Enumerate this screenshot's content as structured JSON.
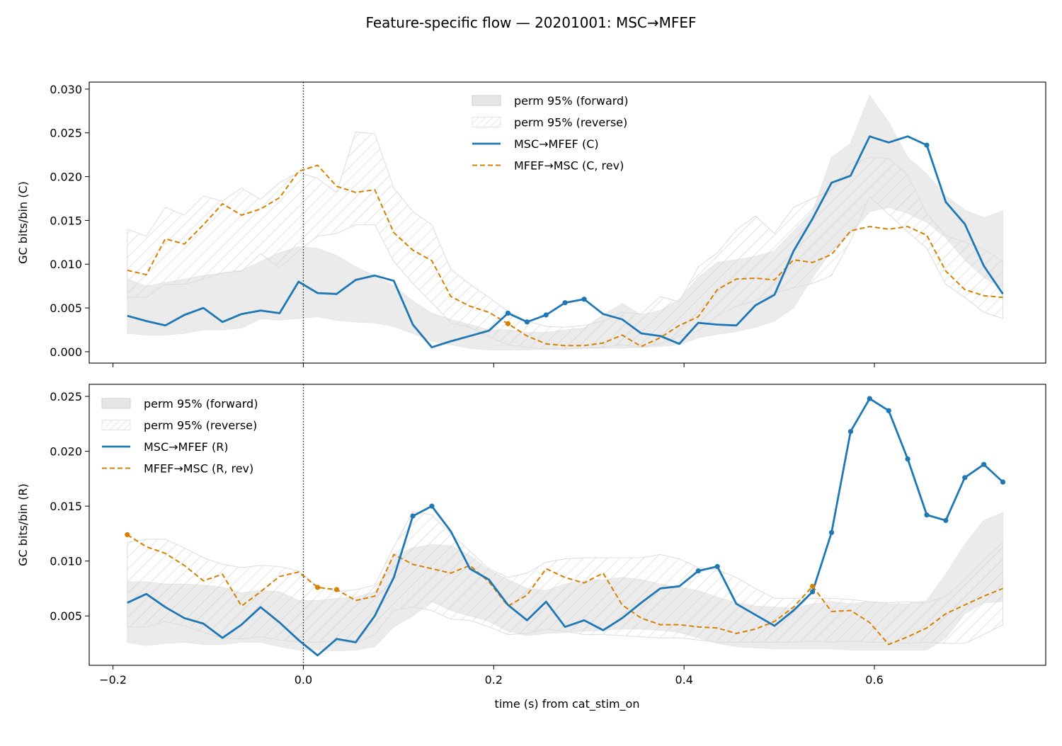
{
  "figure": {
    "suptitle": "Feature-specific flow — 20201001: MSC→MFEF",
    "xlabel": "time (s) from cat_stim_on"
  },
  "colors": {
    "forward_line": "#1f77b4",
    "reverse_line": "#d68100",
    "band_fill": "#e6e6e6",
    "band_edge": "#c8c8c8",
    "hatch": "#cfcfcf"
  },
  "chart_data": [
    {
      "type": "line",
      "ylabel": "GC bits/bin (C)",
      "xlim": [
        -0.225,
        0.78
      ],
      "ylim": [
        -0.0013,
        0.0308
      ],
      "xticks": [
        -0.2,
        0.0,
        0.2,
        0.4,
        0.6
      ],
      "xtick_labels": [
        "",
        "",
        "",
        "",
        ""
      ],
      "yticks": [
        0.0,
        0.005,
        0.01,
        0.015,
        0.02,
        0.025,
        0.03
      ],
      "ytick_labels": [
        "0.000",
        "0.005",
        "0.010",
        "0.015",
        "0.020",
        "0.025",
        "0.030"
      ],
      "vline_x": 0.0,
      "legend_position": "upper-center",
      "legend": [
        "perm 95% (forward)",
        "perm 95% (reverse)",
        "MSC→MFEF (C)",
        "MFEF→MSC (C, rev)"
      ],
      "x": [
        -0.185,
        -0.165,
        -0.145,
        -0.125,
        -0.105,
        -0.085,
        -0.065,
        -0.045,
        -0.025,
        -0.005,
        0.015,
        0.035,
        0.055,
        0.075,
        0.095,
        0.115,
        0.135,
        0.155,
        0.175,
        0.195,
        0.215,
        0.235,
        0.255,
        0.275,
        0.295,
        0.315,
        0.335,
        0.355,
        0.375,
        0.395,
        0.415,
        0.435,
        0.455,
        0.475,
        0.495,
        0.515,
        0.535,
        0.555,
        0.575,
        0.595,
        0.615,
        0.635,
        0.655,
        0.675,
        0.695,
        0.715,
        0.735
      ],
      "series": [
        {
          "name": "MSC→MFEF (C)",
          "role": "forward",
          "values": [
            0.0041,
            0.0035,
            0.003,
            0.0042,
            0.005,
            0.0034,
            0.0043,
            0.0047,
            0.0044,
            0.008,
            0.0067,
            0.0066,
            0.0082,
            0.0087,
            0.0081,
            0.0031,
            0.0005,
            0.0012,
            0.0018,
            0.0024,
            0.0044,
            0.0034,
            0.0042,
            0.0056,
            0.006,
            0.0043,
            0.0037,
            0.0021,
            0.0018,
            0.0009,
            0.0033,
            0.0031,
            0.003,
            0.0053,
            0.0065,
            0.0115,
            0.0152,
            0.0193,
            0.0201,
            0.0246,
            0.0239,
            0.0246,
            0.0236,
            0.0171,
            0.0146,
            0.0098,
            0.0066
          ]
        },
        {
          "name": "MFEF→MSC (C, rev)",
          "role": "reverse",
          "values": [
            0.0093,
            0.0088,
            0.0129,
            0.0123,
            0.0145,
            0.0169,
            0.0156,
            0.0163,
            0.0176,
            0.0206,
            0.0213,
            0.0189,
            0.0182,
            0.0185,
            0.0136,
            0.0116,
            0.0104,
            0.0063,
            0.0052,
            0.0045,
            0.0032,
            0.0018,
            0.0009,
            0.0007,
            0.0007,
            0.001,
            0.0019,
            0.0006,
            0.0016,
            0.003,
            0.004,
            0.0071,
            0.0083,
            0.0084,
            0.0082,
            0.0105,
            0.0102,
            0.0111,
            0.0138,
            0.0143,
            0.014,
            0.0143,
            0.0133,
            0.0092,
            0.0071,
            0.0064,
            0.0062
          ]
        }
      ],
      "marked_forward_x": [
        0.215,
        0.235,
        0.255,
        0.275,
        0.295,
        0.655
      ],
      "marked_reverse_x": [
        0.215
      ],
      "band_forward": {
        "lower": [
          0.0021,
          0.0019,
          0.0019,
          0.0021,
          0.0025,
          0.0025,
          0.0027,
          0.0038,
          0.0036,
          0.0038,
          0.004,
          0.0036,
          0.0034,
          0.0033,
          0.0029,
          0.0021,
          0.0012,
          0.0008,
          0.0004,
          0.0002,
          0.0002,
          0.0002,
          0.0003,
          0.0004,
          0.0004,
          0.0004,
          0.0004,
          0.0005,
          0.0006,
          0.0008,
          0.0016,
          0.002,
          0.0023,
          0.0028,
          0.0035,
          0.005,
          0.0085,
          0.0115,
          0.0135,
          0.016,
          0.0165,
          0.0158,
          0.0148,
          0.013,
          0.0105,
          0.0085,
          0.0072
        ],
        "upper": [
          0.0083,
          0.0075,
          0.0079,
          0.0083,
          0.0087,
          0.009,
          0.0093,
          0.0103,
          0.0113,
          0.012,
          0.0118,
          0.011,
          0.0097,
          0.0087,
          0.0075,
          0.0058,
          0.0044,
          0.0037,
          0.0031,
          0.0025,
          0.0025,
          0.0022,
          0.0022,
          0.0025,
          0.0027,
          0.0042,
          0.0055,
          0.0042,
          0.0047,
          0.006,
          0.0085,
          0.0102,
          0.0105,
          0.0109,
          0.0115,
          0.0138,
          0.016,
          0.0222,
          0.0238,
          0.0293,
          0.0262,
          0.0222,
          0.0203,
          0.0178,
          0.0162,
          0.0153,
          0.0161
        ]
      },
      "band_reverse": {
        "lower": [
          0.0062,
          0.0062,
          0.0077,
          0.0077,
          0.0083,
          0.009,
          0.0092,
          0.0112,
          0.0096,
          0.0115,
          0.0132,
          0.0135,
          0.0145,
          0.0145,
          0.0103,
          0.0078,
          0.0056,
          0.0033,
          0.0028,
          0.0017,
          0.0008,
          0.0005,
          0.0003,
          0.0003,
          0.0004,
          0.0005,
          0.0008,
          0.0005,
          0.0009,
          0.0018,
          0.0024,
          0.0041,
          0.0052,
          0.0058,
          0.0067,
          0.0073,
          0.0078,
          0.0087,
          0.0127,
          0.0177,
          0.0157,
          0.0137,
          0.0118,
          0.0077,
          0.0062,
          0.0045,
          0.0038
        ],
        "upper": [
          0.014,
          0.0132,
          0.0165,
          0.0156,
          0.0178,
          0.0172,
          0.0187,
          0.0174,
          0.0193,
          0.0205,
          0.0198,
          0.0182,
          0.0251,
          0.0249,
          0.0187,
          0.016,
          0.0145,
          0.0094,
          0.0077,
          0.0062,
          0.0046,
          0.0035,
          0.0029,
          0.0028,
          0.003,
          0.0035,
          0.0045,
          0.0043,
          0.0063,
          0.0057,
          0.0097,
          0.0113,
          0.0139,
          0.0155,
          0.0135,
          0.0165,
          0.0175,
          0.0185,
          0.0215,
          0.0222,
          0.0221,
          0.0202,
          0.0158,
          0.0133,
          0.0125,
          0.0117,
          0.0103
        ]
      }
    },
    {
      "type": "line",
      "ylabel": "GC bits/bin (R)",
      "xlim": [
        -0.225,
        0.78
      ],
      "ylim": [
        0.0005,
        0.0261
      ],
      "xticks": [
        -0.2,
        0.0,
        0.2,
        0.4,
        0.6
      ],
      "xtick_labels": [
        "−0.2",
        "0.0",
        "0.2",
        "0.4",
        "0.6"
      ],
      "yticks": [
        0.005,
        0.01,
        0.015,
        0.02,
        0.025
      ],
      "ytick_labels": [
        "0.005",
        "0.010",
        "0.015",
        "0.020",
        "0.025"
      ],
      "vline_x": 0.0,
      "legend_position": "upper-left",
      "legend": [
        "perm 95% (forward)",
        "perm 95% (reverse)",
        "MSC→MFEF (R)",
        "MFEF→MSC (R, rev)"
      ],
      "x": [
        -0.185,
        -0.165,
        -0.145,
        -0.125,
        -0.105,
        -0.085,
        -0.065,
        -0.045,
        -0.025,
        -0.005,
        0.015,
        0.035,
        0.055,
        0.075,
        0.095,
        0.115,
        0.135,
        0.155,
        0.175,
        0.195,
        0.215,
        0.235,
        0.255,
        0.275,
        0.295,
        0.315,
        0.335,
        0.355,
        0.375,
        0.395,
        0.415,
        0.435,
        0.455,
        0.475,
        0.495,
        0.515,
        0.535,
        0.555,
        0.575,
        0.595,
        0.615,
        0.635,
        0.655,
        0.675,
        0.695,
        0.715,
        0.735
      ],
      "series": [
        {
          "name": "MSC→MFEF (R)",
          "role": "forward",
          "values": [
            0.0062,
            0.007,
            0.0058,
            0.0048,
            0.0043,
            0.003,
            0.0042,
            0.0058,
            0.0044,
            0.0028,
            0.0014,
            0.0029,
            0.0026,
            0.005,
            0.0085,
            0.0141,
            0.015,
            0.0127,
            0.0093,
            0.0083,
            0.006,
            0.0046,
            0.0063,
            0.004,
            0.0046,
            0.0037,
            0.0048,
            0.0062,
            0.0075,
            0.0077,
            0.0091,
            0.0095,
            0.0061,
            0.0051,
            0.0041,
            0.0055,
            0.0072,
            0.0126,
            0.0218,
            0.0248,
            0.0237,
            0.0193,
            0.0142,
            0.0137,
            0.0176,
            0.0188,
            0.0172
          ]
        },
        {
          "name": "MFEF→MSC (R, rev)",
          "role": "reverse",
          "values": [
            0.0124,
            0.0113,
            0.0107,
            0.0096,
            0.0082,
            0.0088,
            0.0059,
            0.0072,
            0.0086,
            0.009,
            0.0076,
            0.0074,
            0.0064,
            0.0068,
            0.0106,
            0.0097,
            0.0093,
            0.0089,
            0.0096,
            0.0081,
            0.0059,
            0.0069,
            0.0093,
            0.0085,
            0.008,
            0.0089,
            0.006,
            0.0048,
            0.0042,
            0.0042,
            0.004,
            0.0039,
            0.0034,
            0.0038,
            0.0045,
            0.0058,
            0.0077,
            0.0054,
            0.0055,
            0.0044,
            0.0024,
            0.0031,
            0.0039,
            0.0052,
            0.006,
            0.0068,
            0.0075
          ]
        }
      ],
      "marked_forward_x": [
        0.115,
        0.135,
        0.415,
        0.435,
        0.535,
        0.555,
        0.575,
        0.595,
        0.615,
        0.635,
        0.655,
        0.675,
        0.695,
        0.715,
        0.735
      ],
      "marked_reverse_x": [
        -0.185,
        0.015,
        0.035,
        0.535
      ],
      "band_forward": {
        "lower": [
          0.0026,
          0.0023,
          0.0025,
          0.0026,
          0.0024,
          0.0024,
          0.0026,
          0.0026,
          0.0022,
          0.0019,
          0.0019,
          0.0018,
          0.0019,
          0.0022,
          0.004,
          0.005,
          0.0063,
          0.0055,
          0.005,
          0.0045,
          0.0036,
          0.0032,
          0.0034,
          0.0035,
          0.0036,
          0.0037,
          0.0038,
          0.0038,
          0.0037,
          0.0035,
          0.003,
          0.0025,
          0.0022,
          0.0021,
          0.002,
          0.002,
          0.002,
          0.002,
          0.0019,
          0.0019,
          0.0019,
          0.0019,
          0.0019,
          0.003,
          0.0052,
          0.0062,
          0.0063
        ],
        "upper": [
          0.0081,
          0.0081,
          0.0079,
          0.0079,
          0.0078,
          0.0076,
          0.0071,
          0.0073,
          0.0072,
          0.0064,
          0.0064,
          0.0066,
          0.0067,
          0.0072,
          0.0105,
          0.0112,
          0.0115,
          0.0114,
          0.0105,
          0.0092,
          0.0083,
          0.0075,
          0.0073,
          0.0079,
          0.0082,
          0.0083,
          0.0085,
          0.0083,
          0.0079,
          0.0076,
          0.0073,
          0.0067,
          0.0062,
          0.0059,
          0.0058,
          0.0057,
          0.0061,
          0.0063,
          0.0061,
          0.0063,
          0.0061,
          0.0061,
          0.0064,
          0.0088,
          0.0115,
          0.0137,
          0.0144
        ]
      },
      "band_reverse": {
        "lower": [
          0.004,
          0.004,
          0.0045,
          0.0041,
          0.0035,
          0.003,
          0.0029,
          0.0031,
          0.0028,
          0.0026,
          0.0026,
          0.0027,
          0.0025,
          0.0033,
          0.0055,
          0.0058,
          0.0055,
          0.0047,
          0.0046,
          0.004,
          0.0033,
          0.0034,
          0.0038,
          0.0036,
          0.0033,
          0.0033,
          0.0032,
          0.0031,
          0.003,
          0.003,
          0.0028,
          0.0026,
          0.0026,
          0.0026,
          0.0026,
          0.0026,
          0.0027,
          0.0026,
          0.0027,
          0.0026,
          0.0026,
          0.0025,
          0.0026,
          0.0025,
          0.0025,
          0.0033,
          0.0042
        ],
        "upper": [
          0.0117,
          0.012,
          0.012,
          0.0112,
          0.0103,
          0.0097,
          0.0094,
          0.0096,
          0.0095,
          0.0091,
          0.0077,
          0.0072,
          0.0074,
          0.0078,
          0.0113,
          0.0145,
          0.0142,
          0.0125,
          0.0109,
          0.0093,
          0.0085,
          0.0089,
          0.0099,
          0.0102,
          0.0103,
          0.0103,
          0.0103,
          0.0103,
          0.0106,
          0.0102,
          0.0094,
          0.0092,
          0.0085,
          0.0075,
          0.0066,
          0.0066,
          0.0066,
          0.0066,
          0.0065,
          0.0063,
          0.0062,
          0.0063,
          0.0062,
          0.0068,
          0.0083,
          0.0101,
          0.0117
        ]
      }
    }
  ]
}
